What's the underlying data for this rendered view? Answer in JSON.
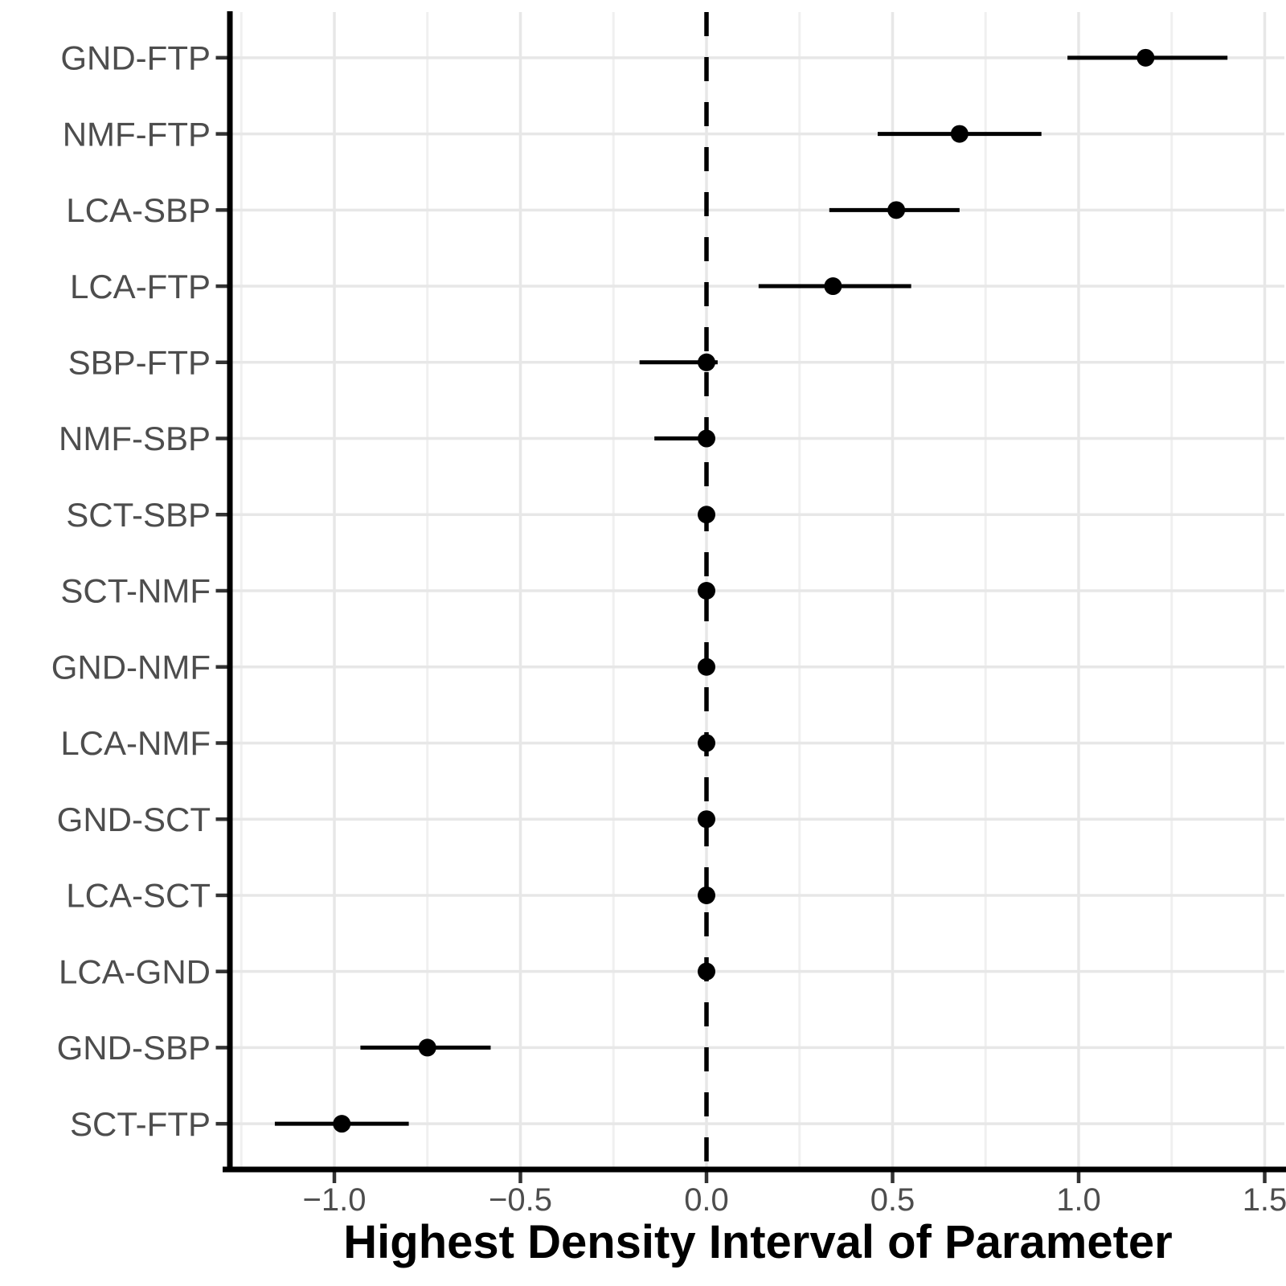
{
  "chart_data": {
    "type": "pointrange",
    "orientation": "horizontal",
    "title": "",
    "xlabel": "Highest Density Interval of Parameter",
    "ylabel": "",
    "xlim": [
      -1.29,
      1.56
    ],
    "grid": true,
    "legend": "none",
    "x_ticks": [
      -1.0,
      -0.5,
      0.0,
      0.5,
      1.0,
      1.5
    ],
    "x_tick_labels": [
      "−1.0",
      "−0.5",
      "0.0",
      "0.5",
      "1.0",
      "1.5"
    ],
    "x_minor_ticks": [
      -1.25,
      -0.75,
      -0.25,
      0.25,
      0.75,
      1.25
    ],
    "reference_line": {
      "x": 0.0,
      "style": "dashed",
      "color": "#000000"
    },
    "points": [
      {
        "label": "GND-FTP",
        "estimate": 1.18,
        "lower": 0.97,
        "upper": 1.4
      },
      {
        "label": "NMF-FTP",
        "estimate": 0.68,
        "lower": 0.46,
        "upper": 0.9
      },
      {
        "label": "LCA-SBP",
        "estimate": 0.51,
        "lower": 0.33,
        "upper": 0.68
      },
      {
        "label": "LCA-FTP",
        "estimate": 0.34,
        "lower": 0.14,
        "upper": 0.55
      },
      {
        "label": "SBP-FTP",
        "estimate": 0.0,
        "lower": -0.18,
        "upper": 0.03
      },
      {
        "label": "NMF-SBP",
        "estimate": 0.0,
        "lower": -0.14,
        "upper": 0.02
      },
      {
        "label": "SCT-SBP",
        "estimate": 0.0,
        "lower": -0.01,
        "upper": 0.01
      },
      {
        "label": "SCT-NMF",
        "estimate": 0.0,
        "lower": -0.01,
        "upper": 0.01
      },
      {
        "label": "GND-NMF",
        "estimate": 0.0,
        "lower": -0.01,
        "upper": 0.01
      },
      {
        "label": "LCA-NMF",
        "estimate": 0.0,
        "lower": -0.01,
        "upper": 0.01
      },
      {
        "label": "GND-SCT",
        "estimate": 0.0,
        "lower": -0.01,
        "upper": 0.01
      },
      {
        "label": "LCA-SCT",
        "estimate": 0.0,
        "lower": -0.01,
        "upper": 0.01
      },
      {
        "label": "LCA-GND",
        "estimate": 0.0,
        "lower": -0.01,
        "upper": 0.01
      },
      {
        "label": "GND-SBP",
        "estimate": -0.75,
        "lower": -0.93,
        "upper": -0.58
      },
      {
        "label": "SCT-FTP",
        "estimate": -0.98,
        "lower": -1.16,
        "upper": -0.8
      }
    ],
    "colors": {
      "point": "#000000",
      "range_line": "#000000",
      "axis_line": "#000000",
      "tick_mark": "#333333",
      "axis_text": "#4d4d4d",
      "axis_title": "#000000",
      "grid_major": "#e7e7e7",
      "grid_minor": "#f0f0f0",
      "background": "#ffffff"
    }
  }
}
